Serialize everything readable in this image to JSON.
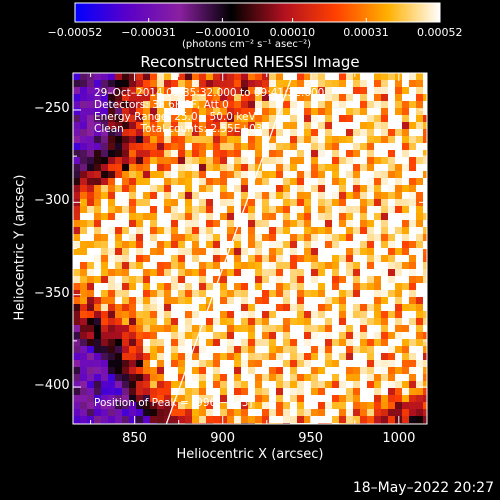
{
  "chart_data": {
    "type": "heatmap",
    "title": "Reconstructed RHESSI Image",
    "xlabel": "Heliocentric X (arcsec)",
    "ylabel": "Heliocentric Y (arcsec)",
    "xlim": [
      815,
      1016
    ],
    "ylim": [
      -420,
      -230
    ],
    "x_ticks": [
      850,
      900,
      950,
      1000
    ],
    "y_ticks": [
      -400,
      -350,
      -300,
      -250
    ],
    "x_tick_labels": [
      "850",
      "900",
      "950",
      "1000"
    ],
    "y_tick_labels": [
      "−400",
      "−350",
      "−300",
      "−250"
    ],
    "colorbar": {
      "range": [
        -0.00052,
        0.00052
      ],
      "ticks": [
        -0.00052,
        -0.00031,
        -0.0001,
        0.0001,
        0.00031,
        0.00052
      ],
      "tick_labels": [
        "−0.00052",
        "−0.00031",
        "−0.00010",
        "0.00010",
        "0.00031",
        "0.00052"
      ],
      "unit_label": "(photons cm⁻² s⁻¹ asec⁻²)",
      "colormap": [
        "#0000ff",
        "#5a00c8",
        "#8a20a0",
        "#000000",
        "#b01020",
        "#ff4000",
        "#ffb000",
        "#ffffff"
      ]
    },
    "annotations": [
      "29–Oct–2014 09:35:32.000 to 09:41:32.000",
      "Detectors: 3F 6F 9F, Att 0",
      "Energy Range: 25.0 – 50.0 keV",
      "Clean     Total counts: 2.55E+03"
    ],
    "peak_label": "Position of Peak = [996,−283]",
    "peak": [
      996,
      -283
    ],
    "limb_line": [
      [
        868,
        -420
      ],
      [
        940,
        -230
      ]
    ],
    "grid": false
  },
  "footer": {
    "timestamp": "18–May–2022 20:27"
  }
}
